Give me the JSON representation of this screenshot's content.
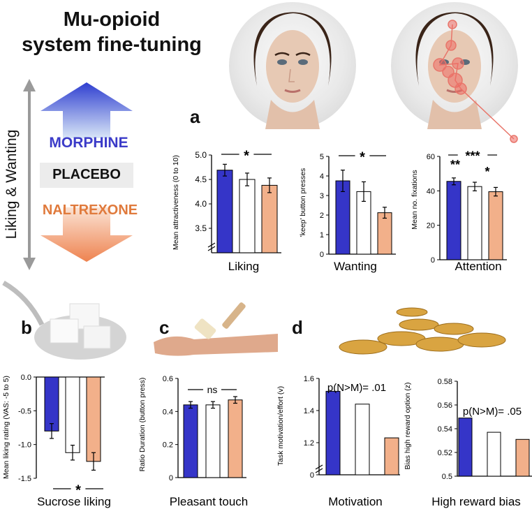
{
  "figure": {
    "title_line1": "Mu-opioid",
    "title_line2": "system fine-tuning",
    "axis_side_label": "Liking & Wanting",
    "drug_labels": {
      "top": "MORPHINE",
      "middle": "PLACEBO",
      "bottom": "NALTREXONE"
    },
    "colors": {
      "morphine": "#3535c8",
      "placebo": "#ffffff",
      "naltrexone": "#f2b08a",
      "morphine_text": "#3b3bc8",
      "naltrexone_text": "#e07a3c"
    },
    "panel_letters": {
      "a": "a",
      "b": "b",
      "c": "c",
      "d": "d"
    }
  },
  "chart_data": [
    {
      "id": "liking",
      "type": "bar",
      "categories": [
        "Morphine",
        "Placebo",
        "Naltrexone"
      ],
      "values": [
        4.69,
        4.5,
        4.38
      ],
      "errors": [
        0.12,
        0.13,
        0.15
      ],
      "ylim": [
        3.0,
        5.0
      ],
      "yticks": [
        "5.0",
        "4.5",
        "4.0",
        "3.5"
      ],
      "ytick_values": [
        5.0,
        4.5,
        4.0,
        3.5
      ],
      "ylabel": "Mean attractiveness (0 to 10)",
      "xlabel": "Liking",
      "significance": [
        "*"
      ],
      "axis_break": true
    },
    {
      "id": "wanting",
      "type": "bar",
      "categories": [
        "Morphine",
        "Placebo",
        "Naltrexone"
      ],
      "values": [
        3.75,
        3.2,
        2.12
      ],
      "errors": [
        0.55,
        0.5,
        0.28
      ],
      "ylim": [
        0,
        5
      ],
      "yticks": [
        "5",
        "4",
        "3",
        "2",
        "1",
        "0"
      ],
      "ytick_values": [
        5,
        4,
        3,
        2,
        1,
        0
      ],
      "ylabel": "'keep' button presses",
      "xlabel": "Wanting",
      "significance": [
        "*"
      ]
    },
    {
      "id": "attention",
      "type": "bar",
      "categories": [
        "Morphine",
        "Placebo",
        "Naltrexone"
      ],
      "values": [
        45.5,
        42.5,
        39.5
      ],
      "errors": [
        2.0,
        2.5,
        2.5
      ],
      "ylim": [
        0,
        60
      ],
      "yticks": [
        "60",
        "40",
        "20",
        "0"
      ],
      "ytick_values": [
        60,
        40,
        20,
        0
      ],
      "ylabel": "Mean no. fixations",
      "xlabel": "Attention",
      "significance": [
        "***",
        "**",
        "*"
      ]
    },
    {
      "id": "sucrose",
      "type": "bar",
      "categories": [
        "Morphine",
        "Placebo",
        "Naltrexone"
      ],
      "values": [
        -0.8,
        -1.12,
        -1.25
      ],
      "errors": [
        0.11,
        0.11,
        0.13
      ],
      "ylim": [
        -1.5,
        0.0
      ],
      "yticks": [
        "0.0",
        "-0.5",
        "-1.0",
        "-1.5"
      ],
      "ytick_values": [
        0.0,
        -0.5,
        -1.0,
        -1.5
      ],
      "ylabel": "Mean liking rating (VAS:  -5 to 5)",
      "xlabel": "Sucrose liking",
      "significance": [
        "*"
      ]
    },
    {
      "id": "touch",
      "type": "bar",
      "categories": [
        "Morphine",
        "Placebo",
        "Naltrexone"
      ],
      "values": [
        0.44,
        0.44,
        0.47
      ],
      "errors": [
        0.02,
        0.02,
        0.02
      ],
      "ylim": [
        0,
        0.6
      ],
      "yticks": [
        "0.6",
        "0.4",
        "0.2",
        "0"
      ],
      "ytick_values": [
        0.6,
        0.4,
        0.2,
        0
      ],
      "ylabel": "Ratio Duration (button press)",
      "xlabel": "Pleasant touch",
      "significance": [
        "ns"
      ]
    },
    {
      "id": "motivation",
      "type": "bar",
      "categories": [
        "Morphine",
        "Placebo",
        "Naltrexone"
      ],
      "values": [
        1.52,
        1.44,
        1.23
      ],
      "ylim": [
        1.0,
        1.6
      ],
      "yticks": [
        "1.6",
        "1.4",
        "1.2",
        "0"
      ],
      "ytick_values": [
        1.6,
        1.4,
        1.2,
        1.0
      ],
      "ylabel": "Task motivation/effort (v)",
      "xlabel": "Motivation",
      "annotation": "p(N>M)= .01",
      "axis_break": true
    },
    {
      "id": "reward_bias",
      "type": "bar",
      "categories": [
        "Morphine",
        "Placebo",
        "Naltrexone"
      ],
      "values": [
        0.549,
        0.537,
        0.531
      ],
      "ylim": [
        0.5,
        0.58
      ],
      "yticks": [
        "0.58",
        "0.56",
        "0.54",
        "0.52",
        "0.5"
      ],
      "ytick_values": [
        0.58,
        0.56,
        0.54,
        0.52,
        0.5
      ],
      "ylabel": "Bias high reward option (z)",
      "xlabel": "High reward bias",
      "annotation": "p(N>M)= .05"
    }
  ]
}
